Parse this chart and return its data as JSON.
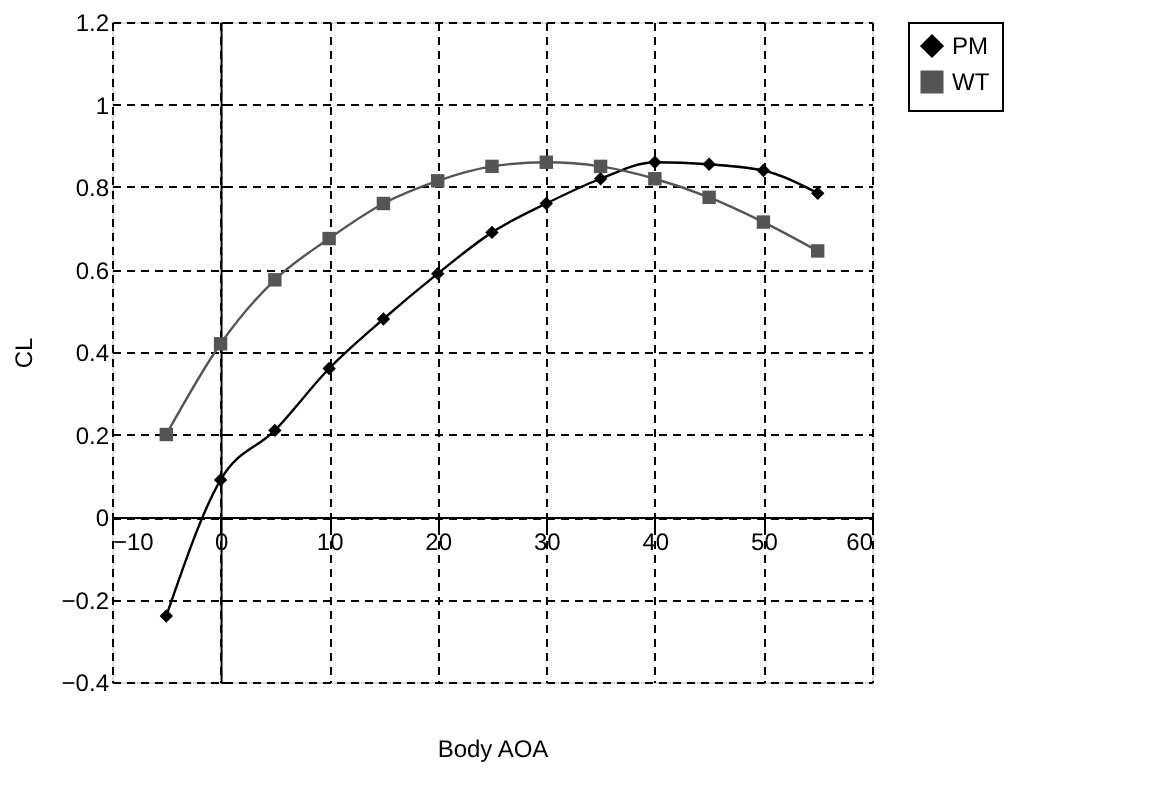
{
  "chart_data": {
    "type": "line",
    "xlabel": "Body AOA",
    "ylabel": "CL",
    "x": [
      -5,
      0,
      5,
      10,
      15,
      20,
      25,
      30,
      35,
      40,
      45,
      50,
      55
    ],
    "series": [
      {
        "name": "PM",
        "color": "#000000",
        "marker": "diamond",
        "values": [
          -0.24,
          0.09,
          0.21,
          0.36,
          0.48,
          0.59,
          0.69,
          0.76,
          0.82,
          0.86,
          0.855,
          0.84,
          0.785
        ]
      },
      {
        "name": "WT",
        "color": "#555555",
        "marker": "square",
        "values": [
          0.2,
          0.42,
          0.575,
          0.675,
          0.76,
          0.815,
          0.85,
          0.86,
          0.85,
          0.82,
          0.775,
          0.715,
          0.645
        ]
      }
    ],
    "xlim": [
      -10,
      60
    ],
    "xticks": [
      -10,
      0,
      10,
      20,
      30,
      40,
      50,
      60
    ],
    "ylim": [
      -0.4,
      1.2
    ],
    "yticks": [
      -0.4,
      -0.2,
      0,
      0.2,
      0.4,
      0.6,
      0.8,
      1,
      1.2
    ],
    "grid": true,
    "legend": "right",
    "line_style": "solid"
  }
}
